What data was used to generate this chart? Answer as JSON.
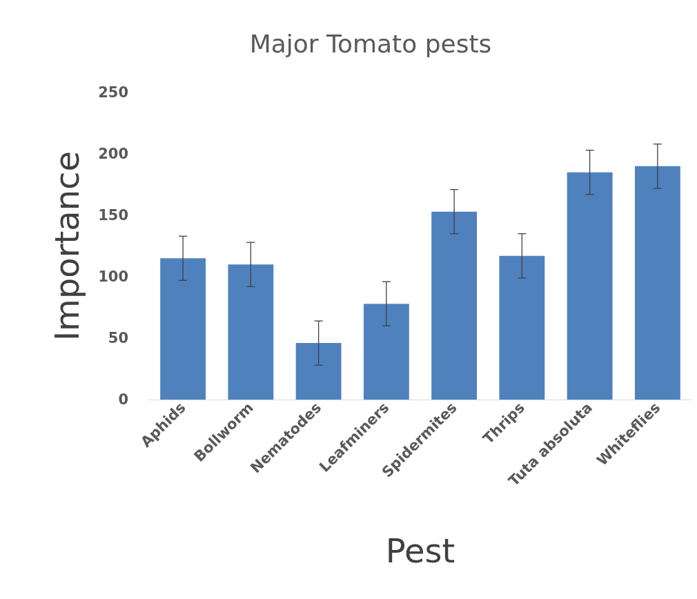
{
  "chart_data": {
    "type": "bar",
    "title": "Major Tomato pests",
    "xlabel": "Pest",
    "ylabel": "Importance",
    "categories": [
      "Aphids",
      "Bollworm",
      "Nematodes",
      "Leafminers",
      "Spidermites",
      "Thrips",
      "Tuta absoluta",
      "Whiteflies"
    ],
    "values": [
      115,
      110,
      46,
      78,
      153,
      117,
      185,
      190
    ],
    "errors": [
      18,
      18,
      18,
      18,
      18,
      18,
      18,
      18
    ],
    "color": "#4f81bd",
    "ylim": [
      0,
      250
    ],
    "yticks": [
      0,
      50,
      100,
      150,
      200,
      250
    ],
    "grid": false
  }
}
